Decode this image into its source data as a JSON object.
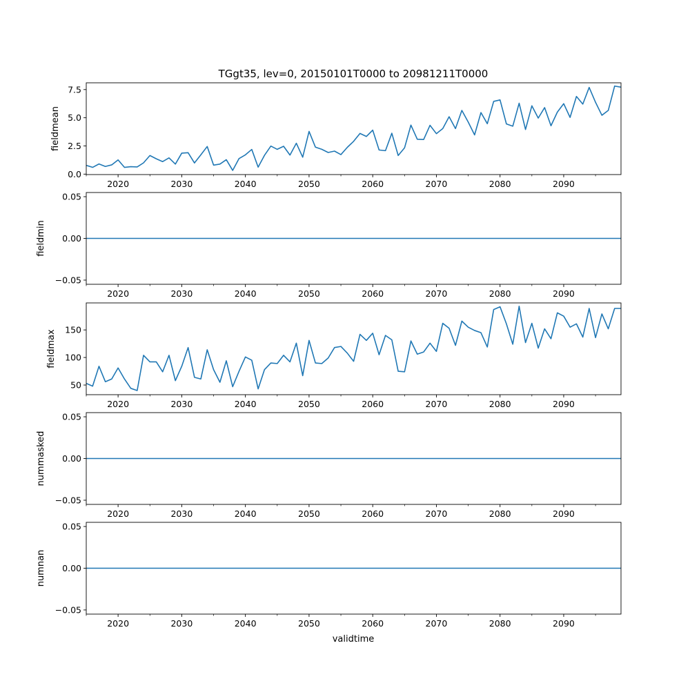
{
  "title": "TGgt35, lev=0, 20150101T0000 to 20981211T0000",
  "xlabel": "validtime",
  "line_color": "#1f77b4",
  "chart_data": [
    {
      "type": "line",
      "ylabel": "fieldmean",
      "xlim": [
        2015,
        2099
      ],
      "ylim": [
        -0.04,
        8.1
      ],
      "yticks": [
        0.0,
        2.5,
        5.0,
        7.5
      ],
      "ytick_labels": [
        "0.0",
        "2.5",
        "5.0",
        "7.5"
      ],
      "xticks": [
        2020,
        2030,
        2040,
        2050,
        2060,
        2070,
        2080,
        2090
      ],
      "xtick_labels": [
        "2020",
        "2030",
        "2040",
        "2050",
        "2060",
        "2070",
        "2080",
        "2090"
      ],
      "x_start": 2015,
      "values": [
        0.78,
        0.6,
        0.9,
        0.68,
        0.82,
        1.26,
        0.6,
        0.66,
        0.64,
        1.0,
        1.65,
        1.36,
        1.11,
        1.44,
        0.89,
        1.86,
        1.9,
        0.99,
        1.71,
        2.45,
        0.8,
        0.89,
        1.28,
        0.33,
        1.38,
        1.71,
        2.19,
        0.62,
        1.67,
        2.49,
        2.2,
        2.47,
        1.69,
        2.74,
        1.5,
        3.79,
        2.39,
        2.2,
        1.92,
        2.04,
        1.73,
        2.37,
        2.91,
        3.61,
        3.34,
        3.9,
        2.14,
        2.08,
        3.63,
        1.65,
        2.33,
        4.35,
        3.09,
        3.07,
        4.33,
        3.59,
        4.04,
        5.09,
        4.04,
        5.65,
        4.62,
        3.48,
        5.46,
        4.47,
        6.45,
        6.58,
        4.45,
        4.25,
        6.29,
        3.96,
        6.06,
        4.97,
        5.9,
        4.29,
        5.5,
        6.25,
        5.03,
        6.89,
        6.21,
        7.69,
        6.37,
        5.22,
        5.65,
        7.81,
        7.71
      ]
    },
    {
      "type": "line",
      "ylabel": "fieldmin",
      "xlim": [
        2015,
        2099
      ],
      "ylim": [
        -0.055,
        0.055
      ],
      "yticks": [
        -0.05,
        0.0,
        0.05
      ],
      "ytick_labels": [
        "−0.05",
        "0.00",
        "0.05"
      ],
      "xticks": [
        2020,
        2030,
        2040,
        2050,
        2060,
        2070,
        2080,
        2090
      ],
      "xtick_labels": [
        "2020",
        "2030",
        "2040",
        "2050",
        "2060",
        "2070",
        "2080",
        "2090"
      ],
      "x_start": 2015,
      "constant": 0,
      "count": 85
    },
    {
      "type": "line",
      "ylabel": "fieldmax",
      "xlim": [
        2015,
        2099
      ],
      "ylim": [
        32.5,
        199
      ],
      "yticks": [
        50,
        100,
        150
      ],
      "ytick_labels": [
        "50",
        "100",
        "150"
      ],
      "xticks": [
        2020,
        2030,
        2040,
        2050,
        2060,
        2070,
        2080,
        2090
      ],
      "xtick_labels": [
        "2020",
        "2030",
        "2040",
        "2050",
        "2060",
        "2070",
        "2080",
        "2090"
      ],
      "x_start": 2015,
      "values": [
        53,
        48,
        84,
        56,
        61,
        81,
        61,
        44,
        40,
        104,
        92,
        92,
        74,
        104,
        58,
        84,
        118,
        64,
        61,
        114,
        78,
        55,
        94,
        47,
        75,
        101,
        95,
        43,
        78,
        90,
        89,
        104,
        92,
        126,
        67,
        131,
        90,
        89,
        99,
        118,
        120,
        108,
        93,
        142,
        131,
        144,
        105,
        140,
        132,
        75,
        74,
        130,
        106,
        110,
        126,
        111,
        162,
        153,
        122,
        166,
        155,
        149,
        145,
        119,
        187,
        192,
        161,
        124,
        193,
        127,
        162,
        117,
        152,
        134,
        181,
        175,
        155,
        161,
        137,
        189,
        136,
        179,
        152,
        189,
        189
      ]
    },
    {
      "type": "line",
      "ylabel": "nummasked",
      "xlim": [
        2015,
        2099
      ],
      "ylim": [
        -0.055,
        0.055
      ],
      "yticks": [
        -0.05,
        0.0,
        0.05
      ],
      "ytick_labels": [
        "−0.05",
        "0.00",
        "0.05"
      ],
      "xticks": [
        2020,
        2030,
        2040,
        2050,
        2060,
        2070,
        2080,
        2090
      ],
      "xtick_labels": [
        "2020",
        "2030",
        "2040",
        "2050",
        "2060",
        "2070",
        "2080",
        "2090"
      ],
      "x_start": 2015,
      "constant": 0,
      "count": 85
    },
    {
      "type": "line",
      "ylabel": "numnan",
      "xlim": [
        2015,
        2099
      ],
      "ylim": [
        -0.055,
        0.055
      ],
      "yticks": [
        -0.05,
        0.0,
        0.05
      ],
      "ytick_labels": [
        "−0.05",
        "0.00",
        "0.05"
      ],
      "xticks": [
        2020,
        2030,
        2040,
        2050,
        2060,
        2070,
        2080,
        2090
      ],
      "xtick_labels": [
        "2020",
        "2030",
        "2040",
        "2050",
        "2060",
        "2070",
        "2080",
        "2090"
      ],
      "x_start": 2015,
      "constant": 0,
      "count": 85
    }
  ]
}
